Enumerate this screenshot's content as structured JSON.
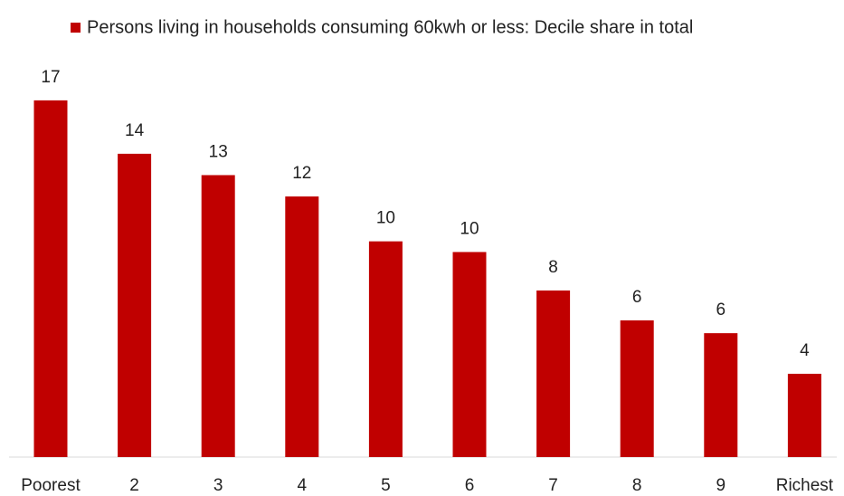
{
  "chart_data": {
    "type": "bar",
    "legend": "Persons living in households consuming 60kwh or less:  Decile share in total",
    "categories": [
      "Poorest",
      "2",
      "3",
      "4",
      "5",
      "6",
      "7",
      "8",
      "9",
      "Richest"
    ],
    "values": [
      16.7,
      14.2,
      13.2,
      12.2,
      10.1,
      9.6,
      7.8,
      6.4,
      5.8,
      3.9
    ],
    "value_labels": [
      "17",
      "14",
      "13",
      "12",
      "10",
      "10",
      "8",
      "6",
      "6",
      "4"
    ],
    "color": "#c00000"
  }
}
